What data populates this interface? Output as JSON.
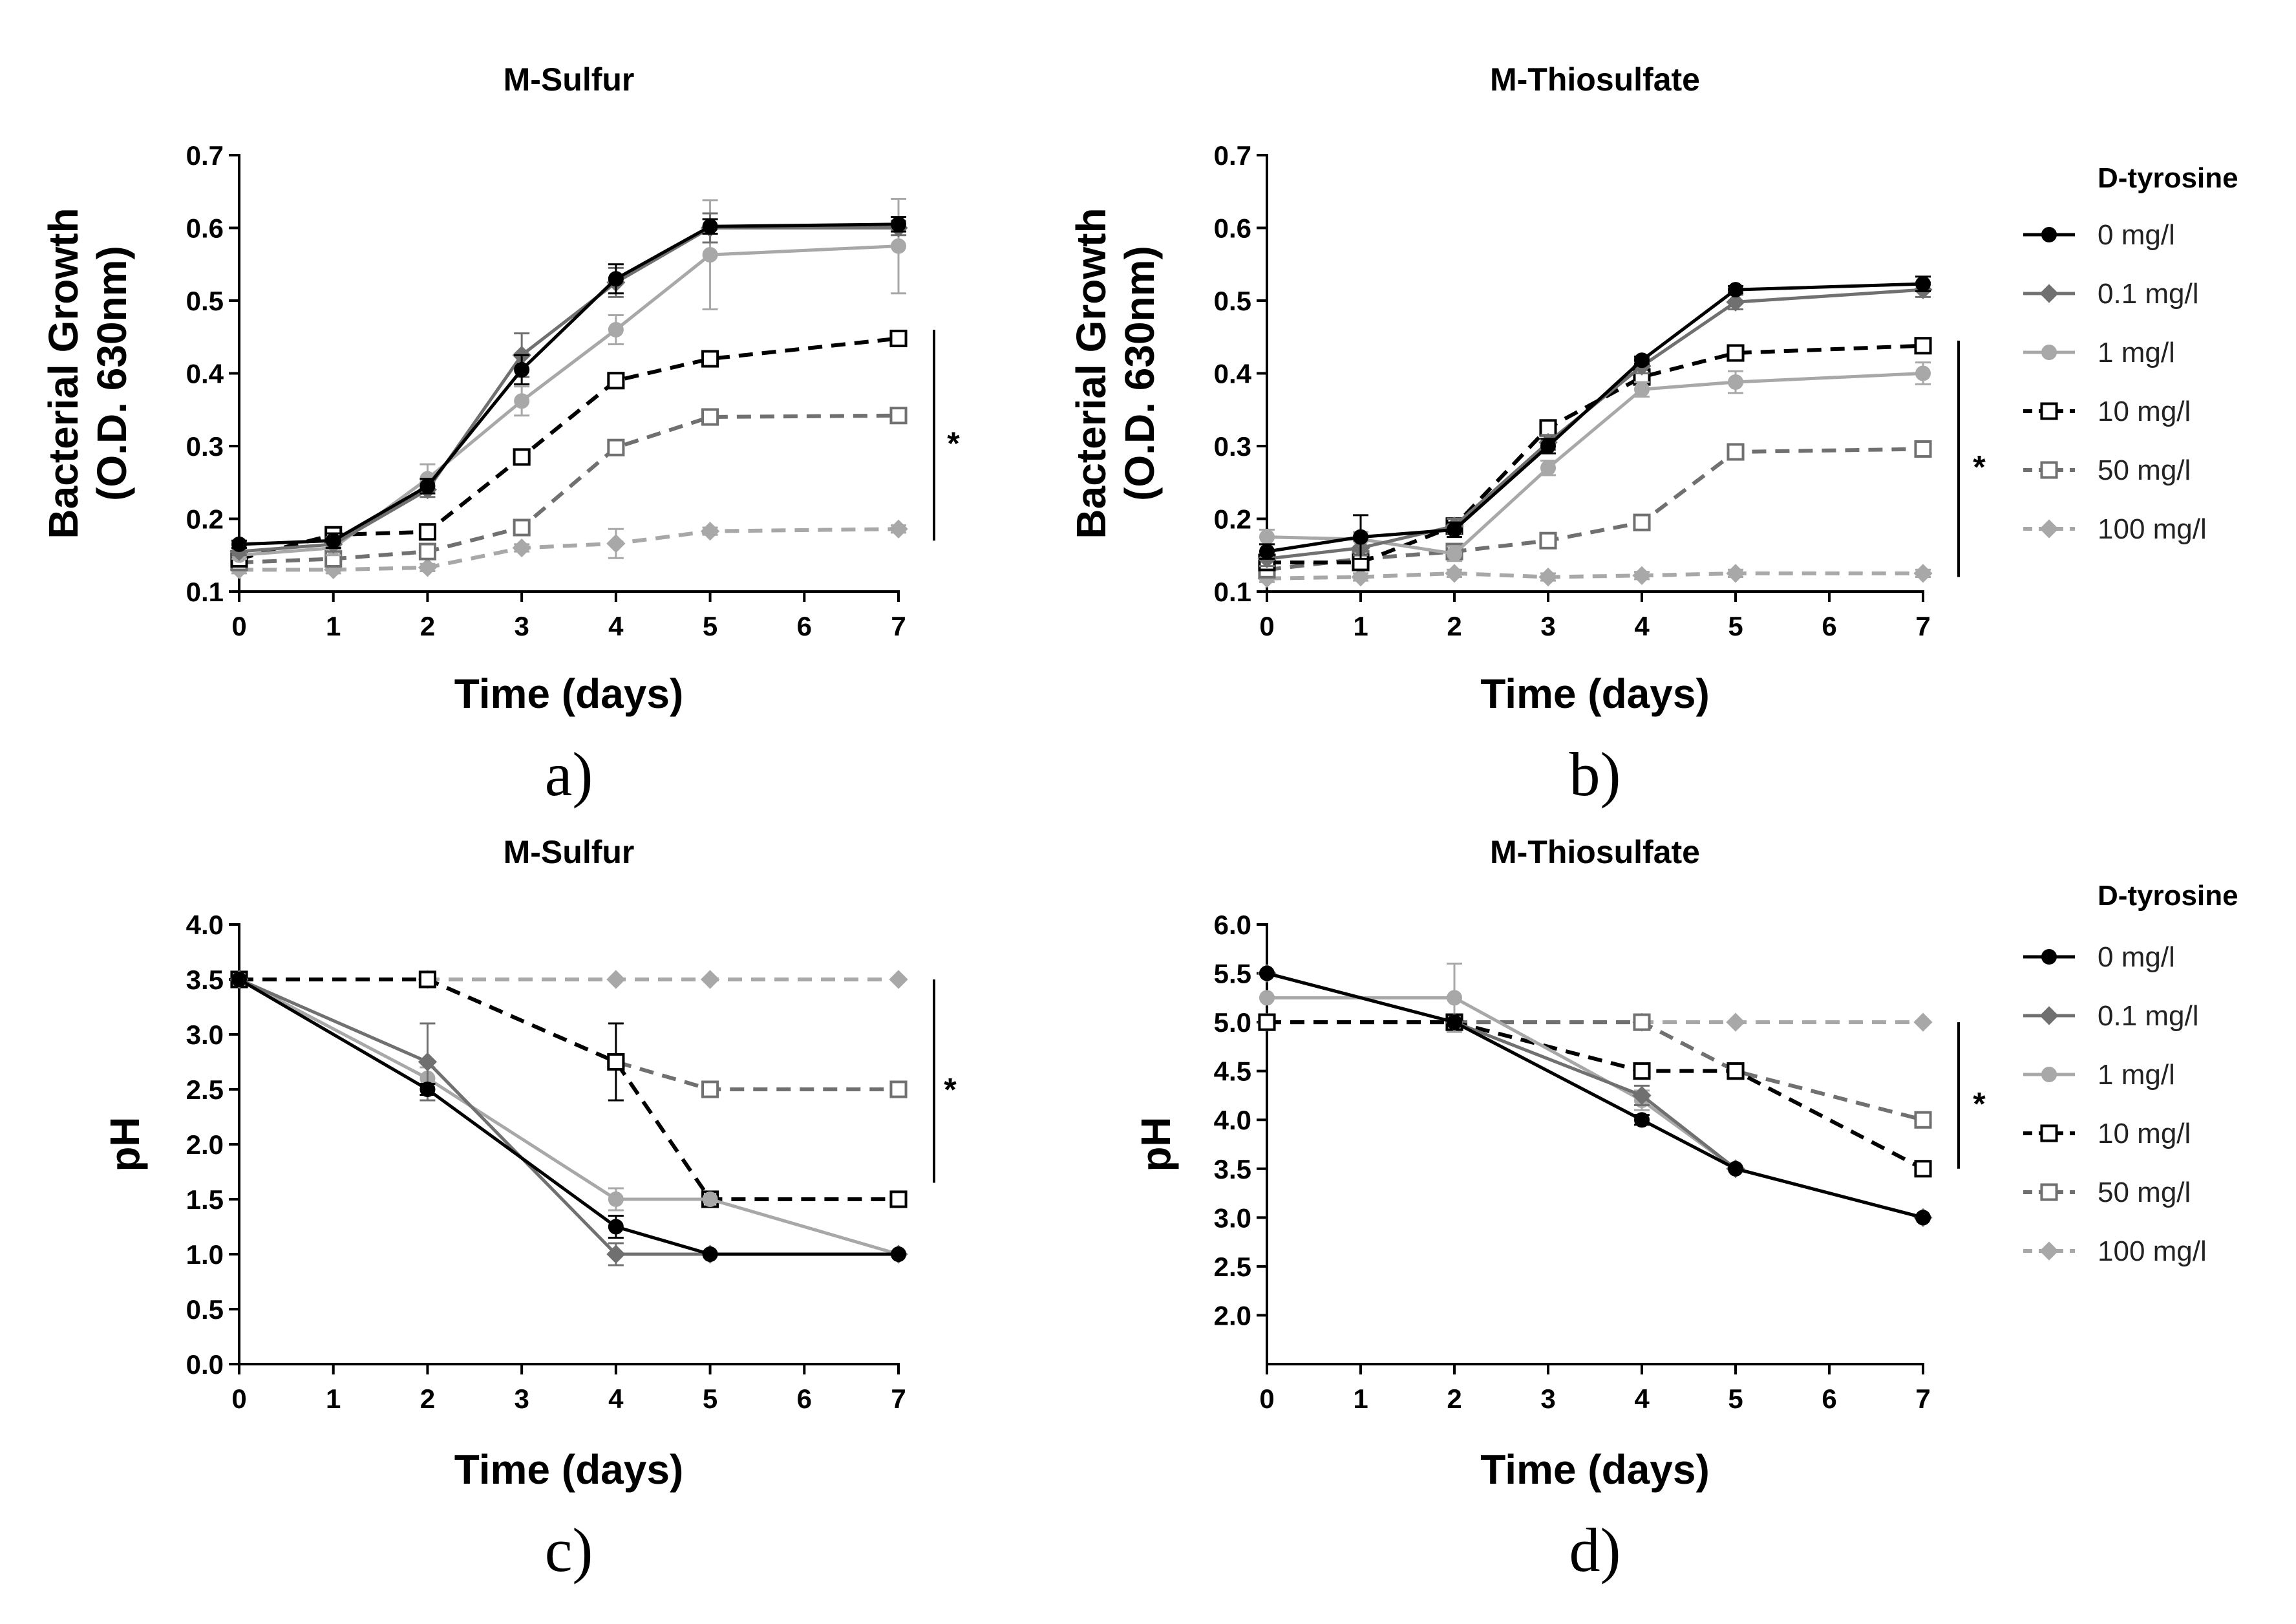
{
  "figure": {
    "legend": {
      "title": "D-tyrosine",
      "entries": [
        "0 mg/l",
        "0.1 mg/l",
        "1 mg/l",
        "10 mg/l",
        "50 mg/l",
        "100 mg/l"
      ]
    },
    "series_styles": [
      {
        "name": "0 mg/l",
        "color": "#000000",
        "dash": "solid",
        "marker": "filled-circle"
      },
      {
        "name": "0.1 mg/l",
        "color": "#707070",
        "dash": "solid",
        "marker": "filled-diamond"
      },
      {
        "name": "1 mg/l",
        "color": "#a8a8a8",
        "dash": "solid",
        "marker": "filled-circle"
      },
      {
        "name": "10 mg/l",
        "color": "#000000",
        "dash": "dashed",
        "marker": "open-square"
      },
      {
        "name": "50 mg/l",
        "color": "#707070",
        "dash": "dashed",
        "marker": "open-square"
      },
      {
        "name": "100 mg/l",
        "color": "#a8a8a8",
        "dash": "dashed",
        "marker": "filled-diamond"
      }
    ]
  },
  "chart_data": [
    {
      "type": "line",
      "panel_label": "a)",
      "title": "M-Sulfur",
      "xlabel": "Time (days)",
      "ylabel": [
        "Bacterial Growth",
        "(O.D. 630nm)"
      ],
      "xlim": [
        0,
        7
      ],
      "ylim": [
        0.1,
        0.7
      ],
      "xticks": [
        0,
        1,
        2,
        3,
        4,
        5,
        6,
        7
      ],
      "yticks": [
        0.1,
        0.2,
        0.3,
        0.4,
        0.5,
        0.6,
        0.7
      ],
      "ytick_labels": [
        "0.1",
        "0.2",
        "0.3",
        "0.4",
        "0.5",
        "0.6",
        "0.7"
      ],
      "significance": "*",
      "significance_span": [
        0.17,
        0.46
      ],
      "series": [
        {
          "name": "0 mg/l",
          "x": [
            0,
            1,
            2,
            3,
            4,
            5,
            7
          ],
          "values": [
            0.165,
            0.17,
            0.245,
            0.405,
            0.53,
            0.602,
            0.605
          ],
          "errors": [
            0.005,
            0.01,
            0.01,
            0.02,
            0.02,
            0.01,
            0.01
          ]
        },
        {
          "name": "0.1 mg/l",
          "x": [
            0,
            1,
            2,
            3,
            4,
            5,
            7
          ],
          "values": [
            0.155,
            0.165,
            0.24,
            0.425,
            0.525,
            0.6,
            0.6
          ],
          "errors": [
            0.005,
            0.01,
            0.01,
            0.03,
            0.02,
            0.02,
            0.01
          ]
        },
        {
          "name": "1 mg/l",
          "x": [
            0,
            1,
            2,
            3,
            4,
            5,
            7
          ],
          "values": [
            0.15,
            0.16,
            0.255,
            0.362,
            0.46,
            0.563,
            0.575
          ],
          "errors": [
            0.005,
            0.01,
            0.02,
            0.02,
            0.02,
            0.075,
            0.065
          ]
        },
        {
          "name": "10 mg/l",
          "x": [
            0,
            1,
            2,
            3,
            4,
            5,
            7
          ],
          "values": [
            0.145,
            0.178,
            0.182,
            0.285,
            0.39,
            0.42,
            0.448
          ],
          "errors": [
            0.005,
            0.005,
            0.005,
            0.005,
            0.005,
            0.005,
            0.005
          ]
        },
        {
          "name": "50 mg/l",
          "x": [
            0,
            1,
            2,
            3,
            4,
            5,
            7
          ],
          "values": [
            0.14,
            0.145,
            0.155,
            0.188,
            0.298,
            0.34,
            0.342
          ],
          "errors": [
            0.005,
            0.005,
            0.005,
            0.005,
            0.005,
            0.005,
            0.005
          ]
        },
        {
          "name": "100 mg/l",
          "x": [
            0,
            1,
            2,
            3,
            4,
            5,
            7
          ],
          "values": [
            0.13,
            0.13,
            0.133,
            0.16,
            0.166,
            0.183,
            0.186
          ],
          "errors": [
            0.005,
            0.005,
            0.005,
            0.005,
            0.02,
            0.005,
            0.005
          ]
        }
      ]
    },
    {
      "type": "line",
      "panel_label": "b)",
      "title": "M-Thiosulfate",
      "xlabel": "Time (days)",
      "ylabel": [
        "Bacterial Growth",
        "(O.D. 630nm)"
      ],
      "xlim": [
        0,
        7
      ],
      "ylim": [
        0.1,
        0.7
      ],
      "xticks": [
        0,
        1,
        2,
        3,
        4,
        5,
        6,
        7
      ],
      "yticks": [
        0.1,
        0.2,
        0.3,
        0.4,
        0.5,
        0.6,
        0.7
      ],
      "ytick_labels": [
        "0.1",
        "0.2",
        "0.3",
        "0.4",
        "0.5",
        "0.6",
        "0.7"
      ],
      "significance": "*",
      "significance_span": [
        0.12,
        0.445
      ],
      "series": [
        {
          "name": "0 mg/l",
          "x": [
            0,
            1,
            2,
            3,
            4,
            5,
            7
          ],
          "values": [
            0.155,
            0.175,
            0.185,
            0.3,
            0.418,
            0.515,
            0.523
          ],
          "errors": [
            0.01,
            0.03,
            0.01,
            0.01,
            0.005,
            0.005,
            0.01
          ]
        },
        {
          "name": "0.1 mg/l",
          "x": [
            0,
            1,
            2,
            3,
            4,
            5,
            7
          ],
          "values": [
            0.145,
            0.16,
            0.19,
            0.305,
            0.41,
            0.498,
            0.515
          ],
          "errors": [
            0.01,
            0.01,
            0.01,
            0.01,
            0.01,
            0.01,
            0.01
          ]
        },
        {
          "name": "1 mg/l",
          "x": [
            0,
            1,
            2,
            3,
            4,
            5,
            7
          ],
          "values": [
            0.175,
            0.172,
            0.152,
            0.27,
            0.378,
            0.388,
            0.4
          ],
          "errors": [
            0.01,
            0.01,
            0.01,
            0.01,
            0.01,
            0.015,
            0.015
          ]
        },
        {
          "name": "10 mg/l",
          "x": [
            0,
            1,
            2,
            3,
            4,
            5,
            7
          ],
          "values": [
            0.14,
            0.14,
            0.19,
            0.325,
            0.395,
            0.428,
            0.438
          ],
          "errors": [
            0.005,
            0.005,
            0.005,
            0.005,
            0.005,
            0.005,
            0.005
          ]
        },
        {
          "name": "50 mg/l",
          "x": [
            0,
            1,
            2,
            3,
            4,
            5,
            7
          ],
          "values": [
            0.13,
            0.145,
            0.155,
            0.17,
            0.195,
            0.292,
            0.296
          ],
          "errors": [
            0.005,
            0.005,
            0.005,
            0.005,
            0.005,
            0.005,
            0.005
          ]
        },
        {
          "name": "100 mg/l",
          "x": [
            0,
            1,
            2,
            3,
            4,
            5,
            7
          ],
          "values": [
            0.118,
            0.12,
            0.125,
            0.12,
            0.122,
            0.125,
            0.125
          ],
          "errors": [
            0.005,
            0.005,
            0.005,
            0.005,
            0.005,
            0.005,
            0.005
          ]
        }
      ]
    },
    {
      "type": "line",
      "panel_label": "c)",
      "title": "M-Sulfur",
      "xlabel": "Time (days)",
      "ylabel": [
        "pH"
      ],
      "xlim": [
        0,
        7
      ],
      "ylim": [
        0,
        4
      ],
      "xticks": [
        0,
        1,
        2,
        3,
        4,
        5,
        6,
        7
      ],
      "yticks": [
        0,
        0.5,
        1,
        1.5,
        2,
        2.5,
        3,
        3.5,
        4
      ],
      "ytick_labels": [
        "0.0",
        "0.5",
        "1.0",
        "1.5",
        "2.0",
        "2.5",
        "3.0",
        "3.5",
        "4.0"
      ],
      "significance": "*",
      "significance_span": [
        1.65,
        3.5
      ],
      "series": [
        {
          "name": "0 mg/l",
          "x": [
            0,
            2,
            4,
            5,
            7
          ],
          "values": [
            3.5,
            2.5,
            1.25,
            1.0,
            1.0
          ],
          "errors": [
            0.0,
            0.05,
            0.1,
            0.0,
            0.0
          ]
        },
        {
          "name": "0.1 mg/l",
          "x": [
            0,
            2,
            4,
            5,
            7
          ],
          "values": [
            3.5,
            2.75,
            1.0,
            1.0,
            1.0
          ],
          "errors": [
            0.0,
            0.35,
            0.1,
            0.0,
            0.0
          ]
        },
        {
          "name": "1 mg/l",
          "x": [
            0,
            2,
            4,
            5,
            7
          ],
          "values": [
            3.5,
            2.6,
            1.5,
            1.5,
            1.0
          ],
          "errors": [
            0.0,
            0.1,
            0.1,
            0.0,
            0.0
          ]
        },
        {
          "name": "10 mg/l",
          "x": [
            0,
            2,
            4,
            5,
            7
          ],
          "values": [
            3.5,
            3.5,
            2.75,
            1.5,
            1.5
          ],
          "errors": [
            0.0,
            0.0,
            0.35,
            0.0,
            0.0
          ]
        },
        {
          "name": "50 mg/l",
          "x": [
            0,
            2,
            4,
            5,
            7
          ],
          "values": [
            3.5,
            3.5,
            2.75,
            2.5,
            2.5
          ],
          "errors": [
            0.0,
            0.0,
            0.0,
            0.0,
            0.0
          ]
        },
        {
          "name": "100 mg/l",
          "x": [
            0,
            2,
            4,
            5,
            7
          ],
          "values": [
            3.5,
            3.5,
            3.5,
            3.5,
            3.5
          ],
          "errors": [
            0.0,
            0.0,
            0.0,
            0.0,
            0.0
          ]
        }
      ]
    },
    {
      "type": "line",
      "panel_label": "d)",
      "title": "M-Thiosulfate",
      "xlabel": "Time (days)",
      "ylabel": [
        "pH"
      ],
      "xlim": [
        0,
        7
      ],
      "ylim": [
        1.5,
        6
      ],
      "xticks": [
        0,
        1,
        2,
        3,
        4,
        5,
        6,
        7
      ],
      "yticks": [
        2,
        2.5,
        3,
        3.5,
        4,
        4.5,
        5,
        5.5,
        6
      ],
      "ytick_labels": [
        "2.0",
        "2.5",
        "3.0",
        "3.5",
        "4.0",
        "4.5",
        "5.0",
        "5.5",
        "6.0"
      ],
      "significance": "*",
      "significance_span": [
        3.5,
        5.0
      ],
      "series": [
        {
          "name": "0 mg/l",
          "x": [
            0,
            2,
            4,
            5,
            7
          ],
          "values": [
            5.5,
            5.0,
            4.0,
            3.5,
            3.0
          ],
          "errors": [
            0.0,
            0.0,
            0.05,
            0.0,
            0.0
          ]
        },
        {
          "name": "0.1 mg/l",
          "x": [
            0,
            2,
            4,
            5,
            7
          ],
          "values": [
            5.5,
            5.0,
            4.25,
            3.5,
            3.0
          ],
          "errors": [
            0.0,
            0.0,
            0.1,
            0.0,
            0.0
          ]
        },
        {
          "name": "1 mg/l",
          "x": [
            0,
            2,
            4,
            5,
            7
          ],
          "values": [
            5.25,
            5.25,
            4.2,
            3.5,
            3.0
          ],
          "errors": [
            0.0,
            0.35,
            0.1,
            0.0,
            0.0
          ]
        },
        {
          "name": "10 mg/l",
          "x": [
            0,
            2,
            4,
            5,
            7
          ],
          "values": [
            5.0,
            5.0,
            4.5,
            4.5,
            3.5
          ],
          "errors": [
            0.0,
            0.0,
            0.0,
            0.0,
            0.0
          ]
        },
        {
          "name": "50 mg/l",
          "x": [
            0,
            2,
            4,
            5,
            7
          ],
          "values": [
            5.0,
            5.0,
            5.0,
            4.5,
            4.0
          ],
          "errors": [
            0.0,
            0.0,
            0.0,
            0.0,
            0.0
          ]
        },
        {
          "name": "100 mg/l",
          "x": [
            0,
            2,
            4,
            5,
            7
          ],
          "values": [
            5.0,
            5.0,
            5.0,
            5.0,
            5.0
          ],
          "errors": [
            0.0,
            0.0,
            0.0,
            0.0,
            0.0
          ]
        }
      ]
    }
  ]
}
